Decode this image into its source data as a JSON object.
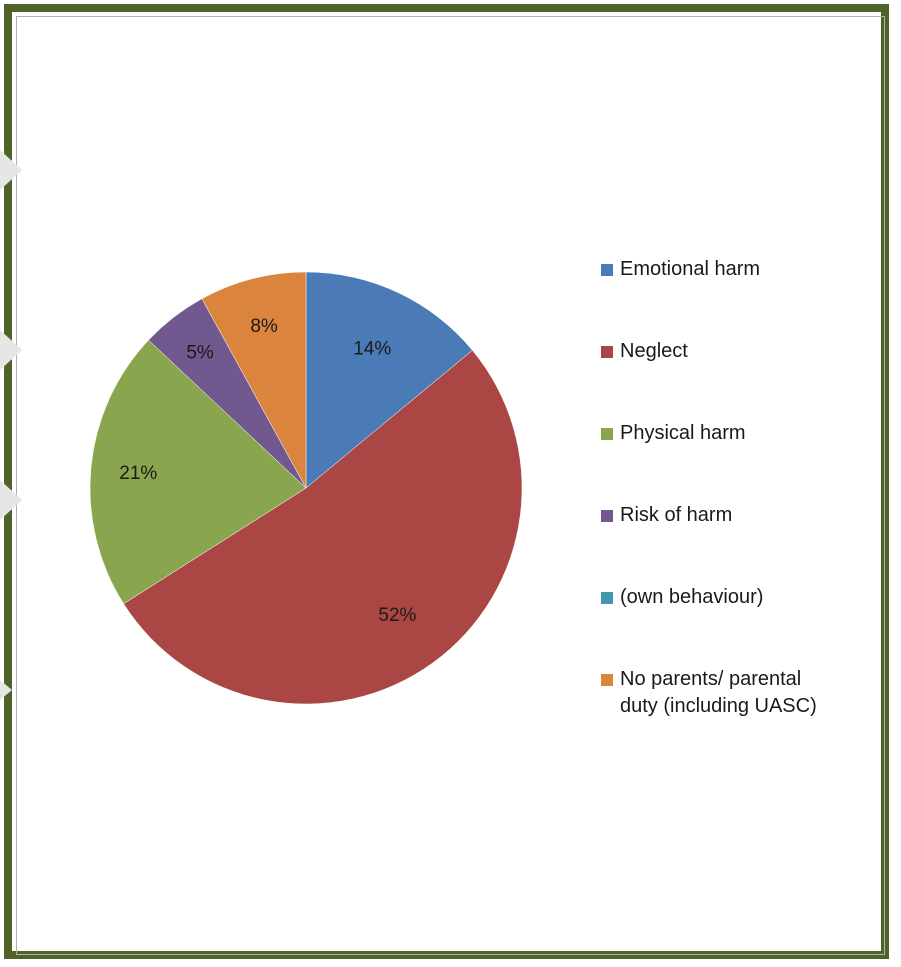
{
  "chart_data": {
    "type": "pie",
    "title": "",
    "start_angle_deg": 0,
    "direction": "clockwise",
    "slices": [
      {
        "label": "Emotional harm",
        "value": 14,
        "display": "14%",
        "color": "#4a7bb7"
      },
      {
        "label": "Neglect",
        "value": 52,
        "display": "52%",
        "color": "#aa4644"
      },
      {
        "label": "Physical harm",
        "value": 21,
        "display": "21%",
        "color": "#89a54e"
      },
      {
        "label": "Risk of harm",
        "value": 5,
        "display": "5%",
        "color": "#71588f"
      },
      {
        "label": "(own behaviour)",
        "value": 0,
        "display": "",
        "color": "#4198af"
      },
      {
        "label": "No parents/ parental duty (including UASC)",
        "value": 8,
        "display": "8%",
        "color": "#db843d"
      }
    ],
    "legend": {
      "position": "right",
      "items": [
        {
          "text": "Emotional harm",
          "color": "#4a7bb7"
        },
        {
          "text": "Neglect",
          "color": "#aa4644"
        },
        {
          "text": "Physical harm",
          "color": "#89a54e"
        },
        {
          "text": "Risk of harm",
          "color": "#71588f"
        },
        {
          "text": "(own behaviour)",
          "color": "#4198af"
        },
        {
          "text": "No parents/ parental\nduty (including UASC)",
          "color": "#db843d"
        }
      ]
    }
  },
  "frame": {
    "border_color": "#4f6228"
  }
}
